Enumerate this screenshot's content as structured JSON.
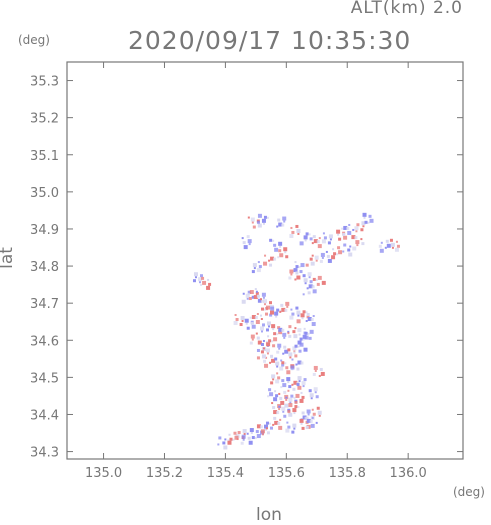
{
  "header": {
    "alt_label": "ALT(km) 2.0",
    "datetime": "2020/09/17 10:35:30"
  },
  "chart_data": {
    "type": "heatmap",
    "xlabel": "lon",
    "ylabel": "lat",
    "xunit": "(deg)",
    "yunit": "(deg)",
    "xlim": [
      134.88,
      136.18
    ],
    "ylim": [
      34.28,
      35.35
    ],
    "xticks": [
      "135.0",
      "135.2",
      "135.4",
      "135.6",
      "135.8",
      "136.0"
    ],
    "yticks": [
      "34.3",
      "34.4",
      "34.5",
      "34.6",
      "34.7",
      "34.8",
      "34.9",
      "35.0",
      "35.1",
      "35.2",
      "35.3"
    ],
    "colors": {
      "positive": "#e87878",
      "negative": "#8a8af0",
      "neutral": "#d8d8f0"
    },
    "cells": [
      [
        135.49,
        34.92,
        1
      ],
      [
        135.52,
        34.93,
        -1
      ],
      [
        135.58,
        34.92,
        -1
      ],
      [
        135.62,
        34.9,
        1
      ],
      [
        135.66,
        34.88,
        -1
      ],
      [
        135.7,
        34.87,
        1
      ],
      [
        135.73,
        34.88,
        -1
      ],
      [
        135.77,
        34.89,
        1
      ],
      [
        135.8,
        34.9,
        -1
      ],
      [
        135.84,
        34.91,
        1
      ],
      [
        135.86,
        34.93,
        -1
      ],
      [
        135.83,
        34.87,
        1
      ],
      [
        135.8,
        34.85,
        -1
      ],
      [
        135.76,
        34.84,
        1
      ],
      [
        135.72,
        34.83,
        -1
      ],
      [
        135.68,
        34.82,
        1
      ],
      [
        135.64,
        34.8,
        -1
      ],
      [
        135.62,
        34.78,
        1
      ],
      [
        135.66,
        34.77,
        -1
      ],
      [
        135.7,
        34.76,
        1
      ],
      [
        135.92,
        34.86,
        -1
      ],
      [
        135.95,
        34.86,
        1
      ],
      [
        135.56,
        34.86,
        -1
      ],
      [
        135.54,
        34.82,
        1
      ],
      [
        135.5,
        34.8,
        -1
      ],
      [
        135.58,
        34.84,
        1
      ],
      [
        135.67,
        34.74,
        -1
      ],
      [
        135.31,
        34.77,
        -1
      ],
      [
        135.33,
        34.76,
        1
      ],
      [
        135.46,
        34.87,
        -1
      ],
      [
        135.47,
        34.72,
        -1
      ],
      [
        135.49,
        34.73,
        1
      ],
      [
        135.51,
        34.72,
        -1
      ],
      [
        135.53,
        34.7,
        1
      ],
      [
        135.56,
        34.68,
        -1
      ],
      [
        135.59,
        34.69,
        1
      ],
      [
        135.62,
        34.68,
        -1
      ],
      [
        135.65,
        34.67,
        1
      ],
      [
        135.68,
        34.66,
        -1
      ],
      [
        135.44,
        34.66,
        1
      ],
      [
        135.47,
        34.65,
        -1
      ],
      [
        135.5,
        34.66,
        1
      ],
      [
        135.53,
        34.64,
        -1
      ],
      [
        135.56,
        34.63,
        1
      ],
      [
        135.59,
        34.62,
        -1
      ],
      [
        135.62,
        34.63,
        1
      ],
      [
        135.65,
        34.61,
        -1
      ],
      [
        135.49,
        34.61,
        1
      ],
      [
        135.52,
        34.59,
        -1
      ],
      [
        135.55,
        34.6,
        1
      ],
      [
        135.58,
        34.58,
        -1
      ],
      [
        135.61,
        34.57,
        1
      ],
      [
        135.64,
        34.58,
        -1
      ],
      [
        135.54,
        34.55,
        1
      ],
      [
        135.57,
        34.54,
        -1
      ],
      [
        135.6,
        34.53,
        1
      ],
      [
        135.63,
        34.54,
        -1
      ],
      [
        135.56,
        34.5,
        1
      ],
      [
        135.59,
        34.49,
        -1
      ],
      [
        135.62,
        34.48,
        1
      ],
      [
        135.65,
        34.49,
        -1
      ],
      [
        135.55,
        34.46,
        -1
      ],
      [
        135.58,
        34.45,
        1
      ],
      [
        135.61,
        34.44,
        -1
      ],
      [
        135.64,
        34.45,
        1
      ],
      [
        135.56,
        34.42,
        1
      ],
      [
        135.59,
        34.41,
        -1
      ],
      [
        135.62,
        34.42,
        1
      ],
      [
        135.66,
        34.4,
        -1
      ],
      [
        135.69,
        34.41,
        1
      ],
      [
        135.53,
        34.37,
        -1
      ],
      [
        135.57,
        34.38,
        1
      ],
      [
        135.61,
        34.37,
        -1
      ],
      [
        135.65,
        34.38,
        1
      ],
      [
        135.68,
        34.38,
        -1
      ],
      [
        135.45,
        34.35,
        1
      ],
      [
        135.49,
        34.35,
        -1
      ],
      [
        135.52,
        34.36,
        1
      ],
      [
        135.39,
        34.33,
        -1
      ],
      [
        135.42,
        34.34,
        1
      ],
      [
        135.46,
        34.34,
        -1
      ],
      [
        135.52,
        34.57,
        1
      ],
      [
        135.67,
        34.62,
        -1
      ],
      [
        135.7,
        34.52,
        1
      ],
      [
        135.68,
        34.46,
        -1
      ],
      [
        135.53,
        34.68,
        1
      ]
    ]
  }
}
